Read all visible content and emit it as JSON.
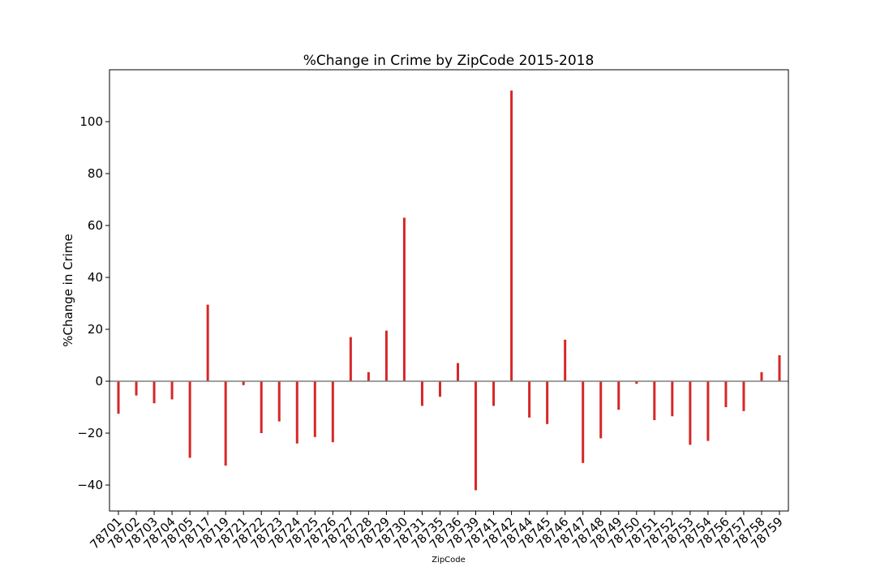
{
  "chart_data": {
    "type": "bar",
    "title": "%Change in Crime by ZipCode 2015-2018",
    "xlabel": "ZipCode",
    "ylabel": "%Change in Crime",
    "ylim": [
      -50,
      120
    ],
    "yticks": [
      -40,
      -20,
      0,
      20,
      40,
      60,
      80,
      100
    ],
    "ytick_labels": [
      "−40",
      "−20",
      "0",
      "20",
      "40",
      "60",
      "80",
      "100"
    ],
    "grid": false,
    "legend": "none",
    "bar_color": "#d62728",
    "zero_line_color": "#7f7f7f",
    "categories": [
      "78701",
      "78702",
      "78703",
      "78704",
      "78705",
      "78717",
      "78719",
      "78721",
      "78722",
      "78723",
      "78724",
      "78725",
      "78726",
      "78727",
      "78728",
      "78729",
      "78730",
      "78731",
      "78735",
      "78736",
      "78739",
      "78741",
      "78742",
      "78744",
      "78745",
      "78746",
      "78747",
      "78748",
      "78749",
      "78750",
      "78751",
      "78752",
      "78753",
      "78754",
      "78756",
      "78757",
      "78758",
      "78759"
    ],
    "values": [
      -12.5,
      -5.5,
      -8.5,
      -7,
      -29.5,
      29.5,
      -32.5,
      -1.5,
      -20,
      -15.5,
      -24,
      -21.5,
      -23.5,
      17,
      3.5,
      19.5,
      63,
      -9.5,
      -6,
      7,
      -42,
      -9.5,
      112,
      -14,
      -16.5,
      16,
      -31.5,
      -22,
      -11,
      -1,
      -15,
      -13.5,
      -24.5,
      -23,
      -10,
      -11.5,
      3.5,
      10
    ]
  }
}
